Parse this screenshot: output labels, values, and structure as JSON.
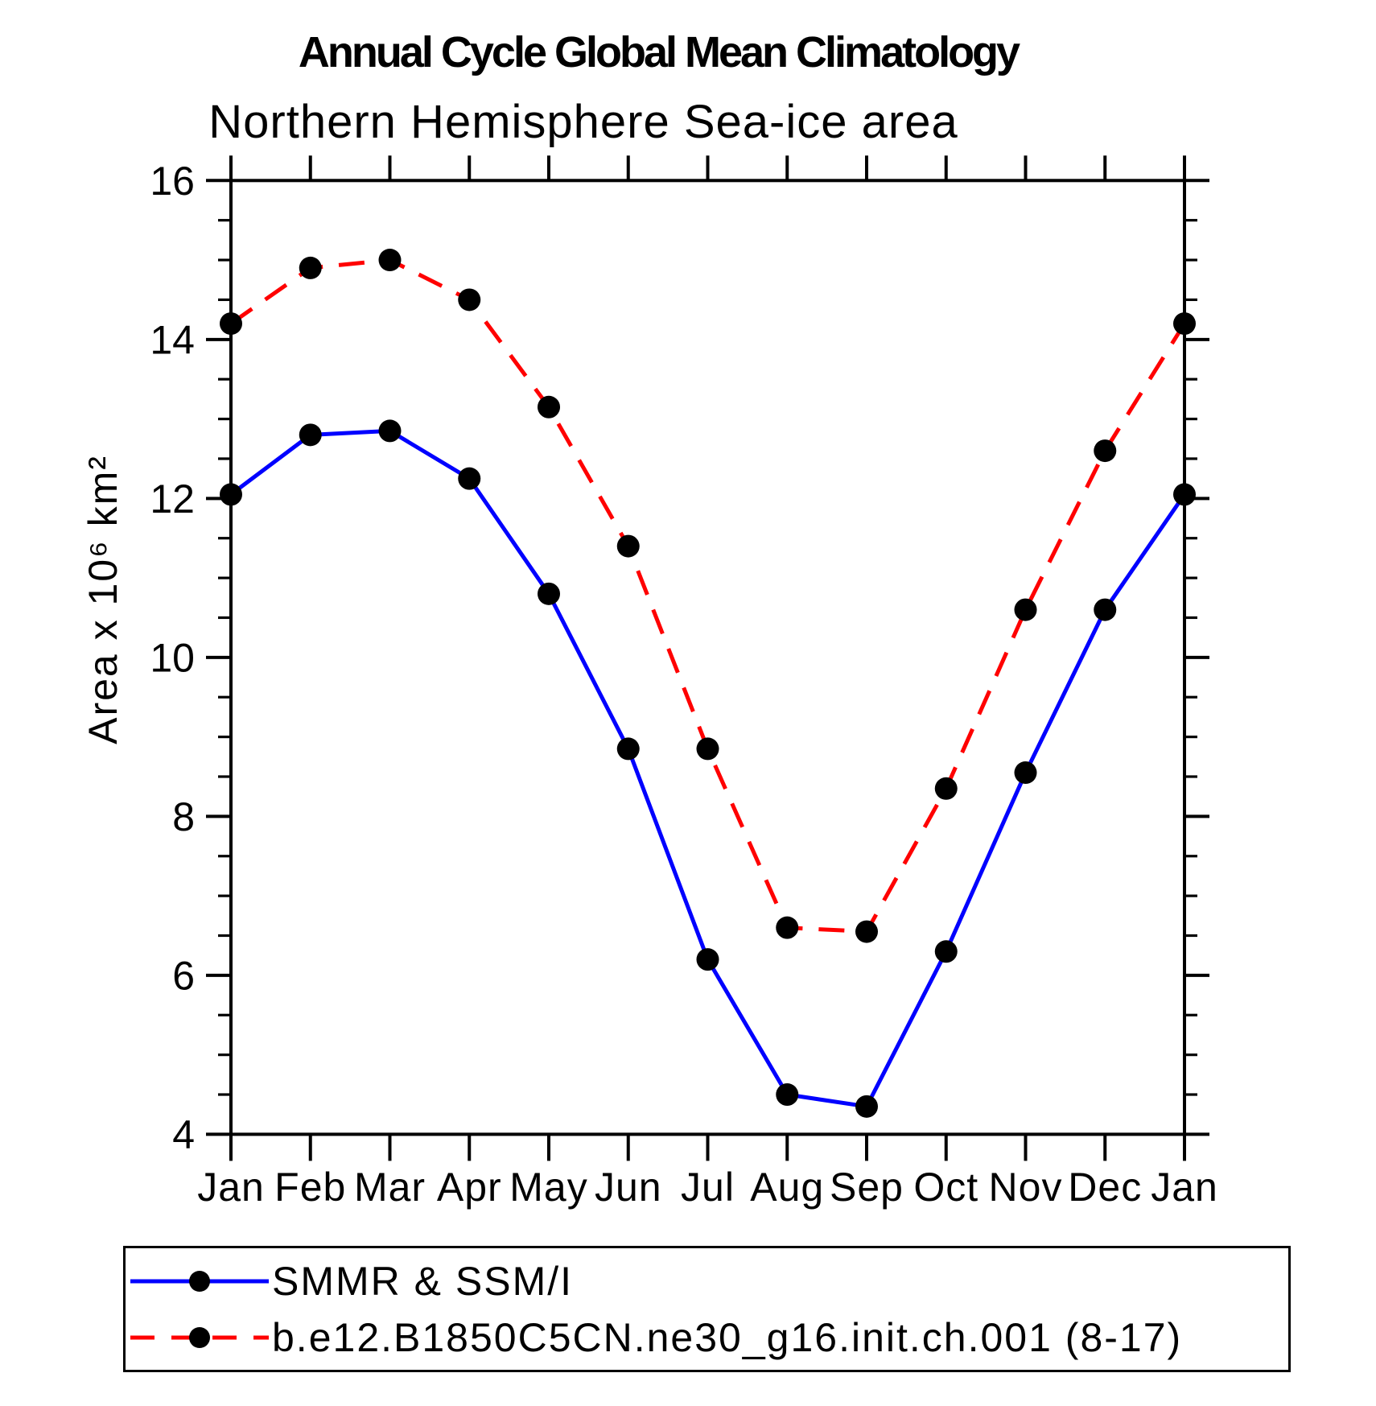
{
  "title": "Annual Cycle Global Mean Climatology",
  "subtitle": "Northern Hemisphere Sea-ice area",
  "chart_data": {
    "type": "line",
    "categories": [
      "Jan",
      "Feb",
      "Mar",
      "Apr",
      "May",
      "Jun",
      "Jul",
      "Aug",
      "Sep",
      "Oct",
      "Nov",
      "Dec",
      "Jan"
    ],
    "series": [
      {
        "name": "SMMR & SSM/I",
        "color": "#0000ff",
        "line_style": "solid",
        "marker": "filled-circle",
        "marker_color": "#000000",
        "values": [
          12.05,
          12.8,
          12.85,
          12.25,
          10.8,
          8.85,
          6.2,
          4.5,
          4.35,
          6.3,
          8.55,
          10.6,
          12.05
        ]
      },
      {
        "name": "b.e12.B1850C5CN.ne30_g16.init.ch.001 (8-17)",
        "color": "#ff0000",
        "line_style": "dashed",
        "marker": "filled-circle",
        "marker_color": "#000000",
        "values": [
          14.2,
          14.9,
          15.0,
          14.5,
          13.15,
          11.4,
          8.85,
          6.6,
          6.55,
          8.35,
          10.6,
          12.6,
          14.2
        ]
      }
    ],
    "xlabel": "",
    "ylabel": "Area x 10⁶ km²",
    "ylim": [
      4,
      16
    ],
    "ytick_major_step": 2,
    "ytick_minor_step": 0.5,
    "ytick_major_labels": [
      "4",
      "6",
      "8",
      "10",
      "12",
      "14",
      "16"
    ],
    "grid": false,
    "legend_position": "bottom-left",
    "axis_color": "#000000",
    "background_color": "#ffffff"
  }
}
